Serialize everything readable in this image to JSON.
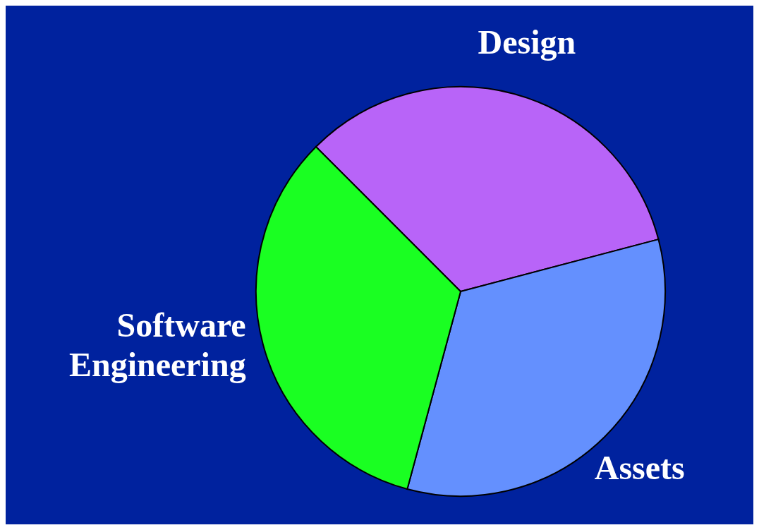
{
  "chart_data": {
    "type": "pie",
    "categories": [
      "Design",
      "Assets",
      "Software Engineering"
    ],
    "values": [
      33.4,
      33.3,
      33.3
    ],
    "colors": [
      "#b864f8",
      "#6490fe",
      "#1aff22"
    ]
  }
}
